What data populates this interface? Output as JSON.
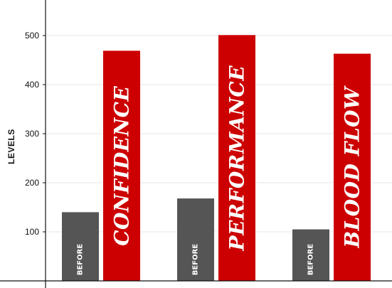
{
  "chart_data": {
    "type": "bar",
    "ylabel": "LEVELS",
    "ylim": [
      0,
      550
    ],
    "yticks": [
      100,
      200,
      300,
      400,
      500
    ],
    "grid": true,
    "categories": [
      "CONFIDENCE",
      "PERFORMANCE",
      "BLOOD FLOW"
    ],
    "before_label": "BEFORE",
    "before_values": [
      140,
      168,
      105
    ],
    "after_values": [
      469,
      501,
      463
    ],
    "colors": {
      "before": "#555555",
      "after": "#cc0000"
    }
  }
}
